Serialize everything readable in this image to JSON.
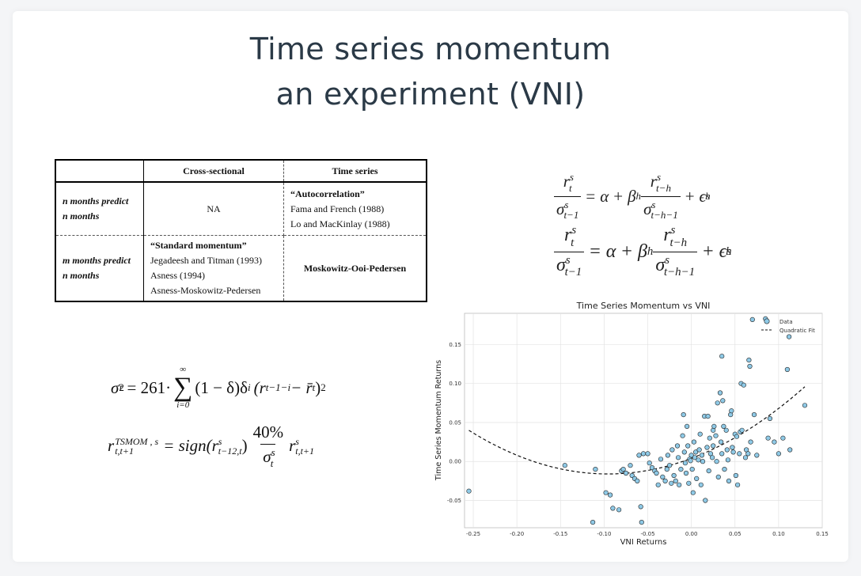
{
  "title": {
    "line1": "Time series momentum",
    "line2": "an experiment (VNI)"
  },
  "table": {
    "headers": [
      "",
      "Cross-sectional",
      "Time series"
    ],
    "row1": {
      "label1": "n months predict",
      "label2": "n months",
      "label_var": "n",
      "cross": "NA",
      "ts_title": "“Autocorrelation”",
      "ts_lines": [
        "Fama and French (1988)",
        "Lo and MacKinlay (1988)"
      ]
    },
    "row2": {
      "label1": "m months predict",
      "label2": "n months",
      "cross_title": "“Standard momentum”",
      "cross_lines": [
        "Jegadeesh and Titman (1993)",
        "Asness (1994)",
        "Asness-Moskowitz-Pedersen"
      ],
      "ts": "Moskowitz-Ooi-Pedersen"
    }
  },
  "formula_top": {
    "alpha": "α",
    "beta": "β",
    "epsilon": "ϵ",
    "r": "r",
    "sigma": "σ",
    "sub_t": "t",
    "sub_tm1": "t−1",
    "sub_tmh": "t−h",
    "sub_tmhm1": "t−h−1",
    "sub_h": "h",
    "sup_s": "s",
    "eq": "=",
    "plus": "+"
  },
  "formula_bottom": {
    "var_lhs": "σ",
    "var_lhs_sub": "t",
    "var_lhs_sup": "2",
    "coef": "= 261·",
    "sum_upper": "∞",
    "sum_lower": "i=0",
    "sum_body": "(1 − δ)δ",
    "sum_body_sup": "i",
    "paren_body": "(r",
    "paren_sub": "t−1−i",
    "paren_minus": " − r̄",
    "paren_sub2": "t",
    "paren_close": ")",
    "paren_sup": "2",
    "r2_lhs": "r",
    "r2_lhs_sup": "TSMOM , s",
    "r2_lhs_sub": "t,t+1",
    "r2_mid": "= sign(r",
    "r2_mid_sup": "s",
    "r2_mid_sub": "t−12,t",
    "r2_mid_close": ")",
    "r2_frac_num": "40%",
    "r2_frac_den": "σ",
    "r2_frac_den_sup": "s",
    "r2_frac_den_sub": "t",
    "r2_tail": "r",
    "r2_tail_sup": "s",
    "r2_tail_sub": "t,t+1"
  },
  "chart_data": {
    "type": "scatter",
    "title": "Time Series Momentum vs VNI",
    "xlabel": "VNI Returns",
    "ylabel": "Time Series Momentum Returns",
    "xlim": [
      -0.26,
      0.15
    ],
    "ylim": [
      -0.085,
      0.19
    ],
    "xticks": [
      "-0.25",
      "-0.20",
      "-0.15",
      "-0.10",
      "-0.05",
      "0.00",
      "0.05",
      "0.10",
      "0.15"
    ],
    "xtick_values": [
      -0.25,
      -0.2,
      -0.15,
      -0.1,
      -0.05,
      0.0,
      0.05,
      0.1,
      0.15
    ],
    "yticks": [
      "-0.05",
      "0.00",
      "0.05",
      "0.10",
      "0.15"
    ],
    "ytick_values": [
      -0.05,
      0.0,
      0.05,
      0.1,
      0.15
    ],
    "grid": true,
    "legend": {
      "placement": "top-right",
      "entries": [
        "Data",
        "Quadratic Fit"
      ]
    },
    "colors": {
      "points": "#8ec9e6",
      "point_edge": "#222222",
      "fit": "#111111"
    },
    "fit": {
      "a": 2.2,
      "b": 0.42,
      "c": 0.004
    },
    "points": [
      [
        -0.255,
        -0.038
      ],
      [
        -0.145,
        -0.005
      ],
      [
        -0.11,
        -0.01
      ],
      [
        -0.113,
        -0.078
      ],
      [
        -0.098,
        -0.04
      ],
      [
        -0.093,
        -0.043
      ],
      [
        -0.09,
        -0.06
      ],
      [
        -0.083,
        -0.062
      ],
      [
        -0.08,
        -0.012
      ],
      [
        -0.078,
        -0.01
      ],
      [
        -0.075,
        -0.015
      ],
      [
        -0.07,
        -0.005
      ],
      [
        -0.068,
        -0.018
      ],
      [
        -0.065,
        -0.022
      ],
      [
        -0.062,
        -0.025
      ],
      [
        -0.06,
        0.008
      ],
      [
        -0.058,
        -0.058
      ],
      [
        -0.057,
        -0.078
      ],
      [
        -0.055,
        0.01
      ],
      [
        -0.05,
        0.01
      ],
      [
        -0.048,
        -0.002
      ],
      [
        -0.045,
        -0.008
      ],
      [
        -0.042,
        -0.012
      ],
      [
        -0.04,
        -0.015
      ],
      [
        -0.038,
        -0.03
      ],
      [
        -0.035,
        0.003
      ],
      [
        -0.033,
        -0.02
      ],
      [
        -0.03,
        -0.025
      ],
      [
        -0.028,
        -0.01
      ],
      [
        -0.027,
        0.008
      ],
      [
        -0.025,
        -0.005
      ],
      [
        -0.023,
        -0.028
      ],
      [
        -0.022,
        0.015
      ],
      [
        -0.02,
        -0.018
      ],
      [
        -0.018,
        -0.025
      ],
      [
        -0.016,
        0.02
      ],
      [
        -0.015,
        0.005
      ],
      [
        -0.014,
        -0.03
      ],
      [
        -0.012,
        -0.01
      ],
      [
        -0.01,
        0.033
      ],
      [
        -0.009,
        0.06
      ],
      [
        -0.008,
        0.012
      ],
      [
        -0.007,
        -0.002
      ],
      [
        -0.006,
        -0.015
      ],
      [
        -0.005,
        0.045
      ],
      [
        -0.004,
        0.02
      ],
      [
        -0.003,
        -0.028
      ],
      [
        -0.002,
        0.003
      ],
      [
        -0.001,
        0.001
      ],
      [
        0.0,
        0.008
      ],
      [
        0.001,
        -0.01
      ],
      [
        0.002,
        -0.04
      ],
      [
        0.003,
        0.025
      ],
      [
        0.004,
        0.005
      ],
      [
        0.005,
        0.012
      ],
      [
        0.006,
        -0.022
      ],
      [
        0.008,
        0.002
      ],
      [
        0.009,
        0.015
      ],
      [
        0.01,
        0.035
      ],
      [
        0.011,
        -0.03
      ],
      [
        0.012,
        0.008
      ],
      [
        0.013,
        0.0
      ],
      [
        0.015,
        0.058
      ],
      [
        0.016,
        -0.05
      ],
      [
        0.018,
        0.018
      ],
      [
        0.019,
        0.058
      ],
      [
        0.02,
        -0.012
      ],
      [
        0.021,
        0.03
      ],
      [
        0.022,
        0.01
      ],
      [
        0.024,
        0.005
      ],
      [
        0.025,
        0.04
      ],
      [
        0.026,
        0.045
      ],
      [
        0.028,
        0.033
      ],
      [
        0.029,
        0.0
      ],
      [
        0.03,
        0.075
      ],
      [
        0.031,
        -0.02
      ],
      [
        0.033,
        0.088
      ],
      [
        0.034,
        0.025
      ],
      [
        0.035,
        0.01
      ],
      [
        0.036,
        0.078
      ],
      [
        0.037,
        0.045
      ],
      [
        0.038,
        -0.01
      ],
      [
        0.04,
        0.04
      ],
      [
        0.041,
        0.015
      ],
      [
        0.042,
        0.002
      ],
      [
        0.043,
        -0.025
      ],
      [
        0.045,
        0.06
      ],
      [
        0.046,
        0.065
      ],
      [
        0.047,
        0.018
      ],
      [
        0.048,
        0.012
      ],
      [
        0.05,
        0.035
      ],
      [
        0.051,
        -0.018
      ],
      [
        0.052,
        0.032
      ],
      [
        0.053,
        -0.03
      ],
      [
        0.055,
        0.01
      ],
      [
        0.056,
        0.038
      ],
      [
        0.057,
        0.1
      ],
      [
        0.058,
        0.04
      ],
      [
        0.06,
        0.098
      ],
      [
        0.062,
        0.005
      ],
      [
        0.063,
        0.015
      ],
      [
        0.065,
        0.01
      ],
      [
        0.066,
        0.13
      ],
      [
        0.067,
        0.122
      ],
      [
        0.068,
        0.025
      ],
      [
        0.07,
        0.182
      ],
      [
        0.072,
        0.06
      ],
      [
        0.075,
        0.008
      ],
      [
        0.085,
        0.183
      ],
      [
        0.088,
        0.03
      ],
      [
        0.09,
        0.055
      ],
      [
        0.095,
        0.025
      ],
      [
        0.1,
        0.01
      ],
      [
        0.105,
        0.03
      ],
      [
        0.11,
        0.118
      ],
      [
        0.112,
        0.16
      ],
      [
        0.113,
        0.015
      ],
      [
        0.13,
        0.072
      ],
      [
        0.035,
        0.135
      ],
      [
        0.025,
        0.02
      ]
    ]
  }
}
